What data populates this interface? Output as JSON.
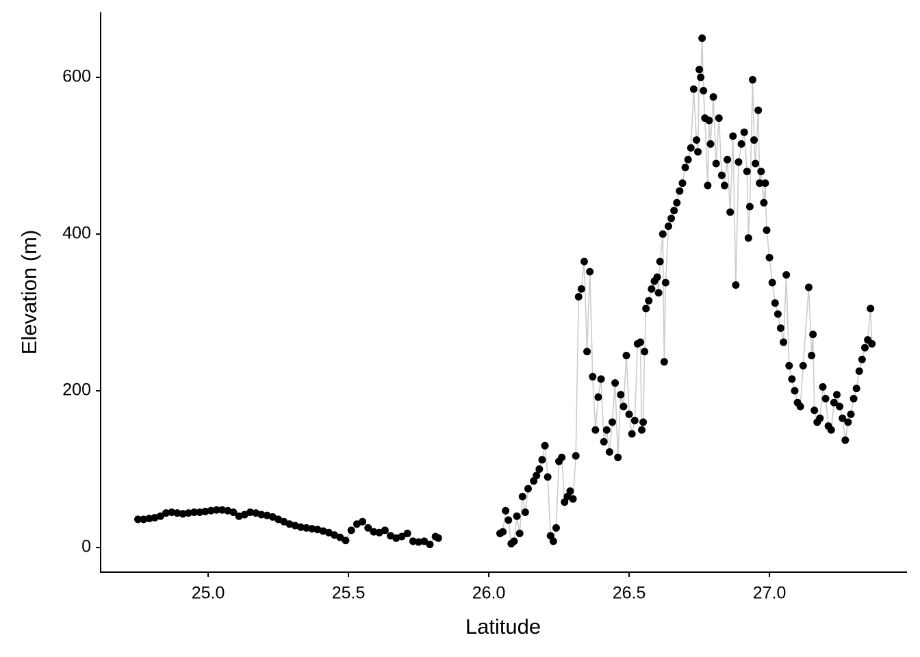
{
  "chart_data": {
    "type": "scatter",
    "connect": true,
    "x_label": "Latitude",
    "y_label": "Elevation (m)",
    "x": [
      24.75,
      24.77,
      24.79,
      24.81,
      24.83,
      24.85,
      24.87,
      24.89,
      24.91,
      24.93,
      24.95,
      24.97,
      24.99,
      25.01,
      25.03,
      25.05,
      25.07,
      25.09,
      25.11,
      25.13,
      25.15,
      25.17,
      25.19,
      25.21,
      25.23,
      25.25,
      25.27,
      25.29,
      25.31,
      25.33,
      25.35,
      25.37,
      25.39,
      25.41,
      25.43,
      25.45,
      25.47,
      25.49,
      25.51,
      25.53,
      25.55,
      25.57,
      25.59,
      25.61,
      25.63,
      25.65,
      25.67,
      25.69,
      25.71,
      25.73,
      25.75,
      25.77,
      25.79,
      25.81,
      25.82,
      25.93,
      26.04,
      26.05,
      26.06,
      26.07,
      26.08,
      26.09,
      26.1,
      26.11,
      26.12,
      26.13,
      26.14,
      26.16,
      26.17,
      26.18,
      26.19,
      26.2,
      26.21,
      26.22,
      26.23,
      26.24,
      26.25,
      26.26,
      26.27,
      26.28,
      26.29,
      26.3,
      26.31,
      26.32,
      26.33,
      26.34,
      26.35,
      26.36,
      26.37,
      26.38,
      26.39,
      26.4,
      26.41,
      26.42,
      26.43,
      26.44,
      26.45,
      26.46,
      26.47,
      26.48,
      26.49,
      26.5,
      26.51,
      26.52,
      26.53,
      26.54,
      26.545,
      26.55,
      26.555,
      26.56,
      26.57,
      26.58,
      26.59,
      26.6,
      26.605,
      26.61,
      26.62,
      26.625,
      26.63,
      26.64,
      26.65,
      26.66,
      26.67,
      26.68,
      26.69,
      26.7,
      26.71,
      26.72,
      26.73,
      26.74,
      26.745,
      26.75,
      26.755,
      26.76,
      26.765,
      26.77,
      26.78,
      26.785,
      26.79,
      26.8,
      26.81,
      26.82,
      26.83,
      26.84,
      26.85,
      26.86,
      26.87,
      26.88,
      26.89,
      26.9,
      26.91,
      26.92,
      26.925,
      26.93,
      26.94,
      26.945,
      26.95,
      26.96,
      26.965,
      26.97,
      26.98,
      26.985,
      26.99,
      27.0,
      27.01,
      27.02,
      27.03,
      27.04,
      27.05,
      27.06,
      27.07,
      27.08,
      27.09,
      27.1,
      27.11,
      27.12,
      27.14,
      27.15,
      27.155,
      27.16,
      27.17,
      27.18,
      27.19,
      27.2,
      27.21,
      27.22,
      27.23,
      27.24,
      27.25,
      27.26,
      27.27,
      27.28,
      27.29,
      27.3,
      27.31,
      27.32,
      27.33,
      27.34,
      27.35,
      27.36,
      27.365
    ],
    "values": [
      36,
      36,
      37,
      38,
      40,
      44,
      45,
      44,
      43,
      44,
      45,
      45,
      46,
      47,
      48,
      48,
      47,
      45,
      40,
      42,
      45,
      44,
      42,
      41,
      39,
      36,
      33,
      30,
      28,
      26,
      25,
      24,
      23,
      21,
      19,
      16,
      13,
      9,
      22,
      30,
      33,
      25,
      20,
      19,
      22,
      15,
      12,
      14,
      18,
      8,
      7,
      8,
      4,
      14,
      12,
      null,
      18,
      20,
      47,
      35,
      5,
      8,
      40,
      18,
      65,
      45,
      75,
      85,
      92,
      100,
      112,
      130,
      90,
      15,
      8,
      25,
      110,
      115,
      58,
      65,
      72,
      62,
      117,
      320,
      330,
      365,
      250,
      352,
      218,
      150,
      192,
      215,
      135,
      150,
      122,
      160,
      210,
      115,
      195,
      180,
      245,
      170,
      145,
      162,
      260,
      262,
      150,
      160,
      250,
      305,
      315,
      330,
      340,
      345,
      325,
      365,
      400,
      237,
      338,
      410,
      420,
      430,
      440,
      455,
      465,
      485,
      495,
      510,
      585,
      520,
      505,
      610,
      600,
      650,
      583,
      548,
      462,
      545,
      515,
      575,
      490,
      548,
      475,
      462,
      495,
      428,
      525,
      335,
      492,
      515,
      530,
      480,
      395,
      435,
      597,
      520,
      490,
      558,
      465,
      480,
      440,
      465,
      405,
      370,
      338,
      312,
      298,
      280,
      262,
      348,
      232,
      215,
      200,
      185,
      180,
      232,
      332,
      245,
      272,
      175,
      160,
      165,
      205,
      190,
      155,
      150,
      185,
      195,
      180,
      165,
      137,
      160,
      170,
      190,
      203,
      225,
      240,
      255,
      265,
      305,
      260
    ],
    "color": "#000000",
    "line_color": "#cccccc",
    "xlim": [
      24.617,
      27.49
    ],
    "ylim": [
      -31.4,
      683
    ],
    "xticks": [
      {
        "value": 25,
        "label": "25.0"
      },
      25.5,
      {
        "value": 26,
        "label": "26.0"
      },
      26.5,
      {
        "value": 27,
        "label": "27.0"
      }
    ],
    "yticks": [
      0,
      200,
      400,
      600
    ],
    "grid": false
  }
}
